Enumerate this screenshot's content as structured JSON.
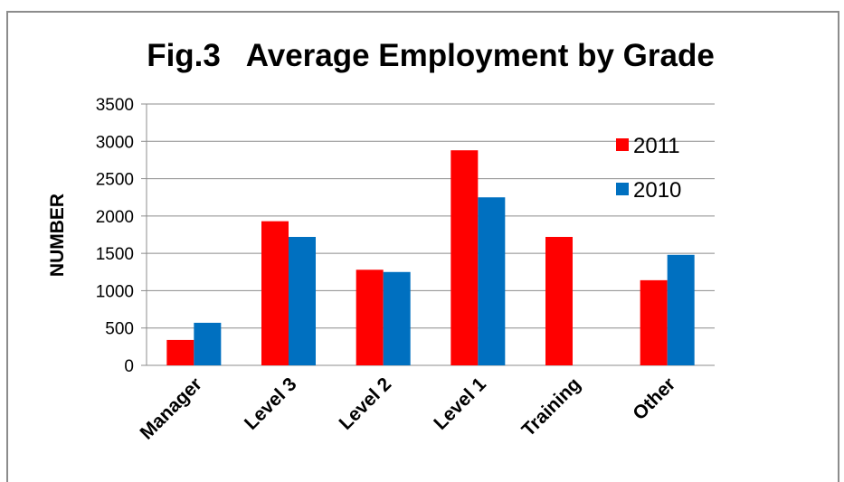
{
  "chart_data": {
    "type": "bar",
    "title": "Fig.3   Average Employment by Grade",
    "xlabel": "",
    "ylabel": "NUMBER",
    "categories": [
      "Manager",
      "Level 3",
      "Level 2",
      "Level 1",
      "Training",
      "Other"
    ],
    "series": [
      {
        "name": "2011",
        "color": "#ff0000",
        "values": [
          340,
          1930,
          1280,
          2880,
          1720,
          1140
        ]
      },
      {
        "name": "2010",
        "color": "#0070c0",
        "values": [
          570,
          1720,
          1250,
          2250,
          0,
          1480
        ]
      }
    ],
    "ylim": [
      0,
      3500
    ],
    "yticks": [
      "0",
      "500",
      "1000",
      "1500",
      "2000",
      "2500",
      "3000",
      "3500"
    ],
    "grid": true,
    "legend_position": "top-right"
  }
}
